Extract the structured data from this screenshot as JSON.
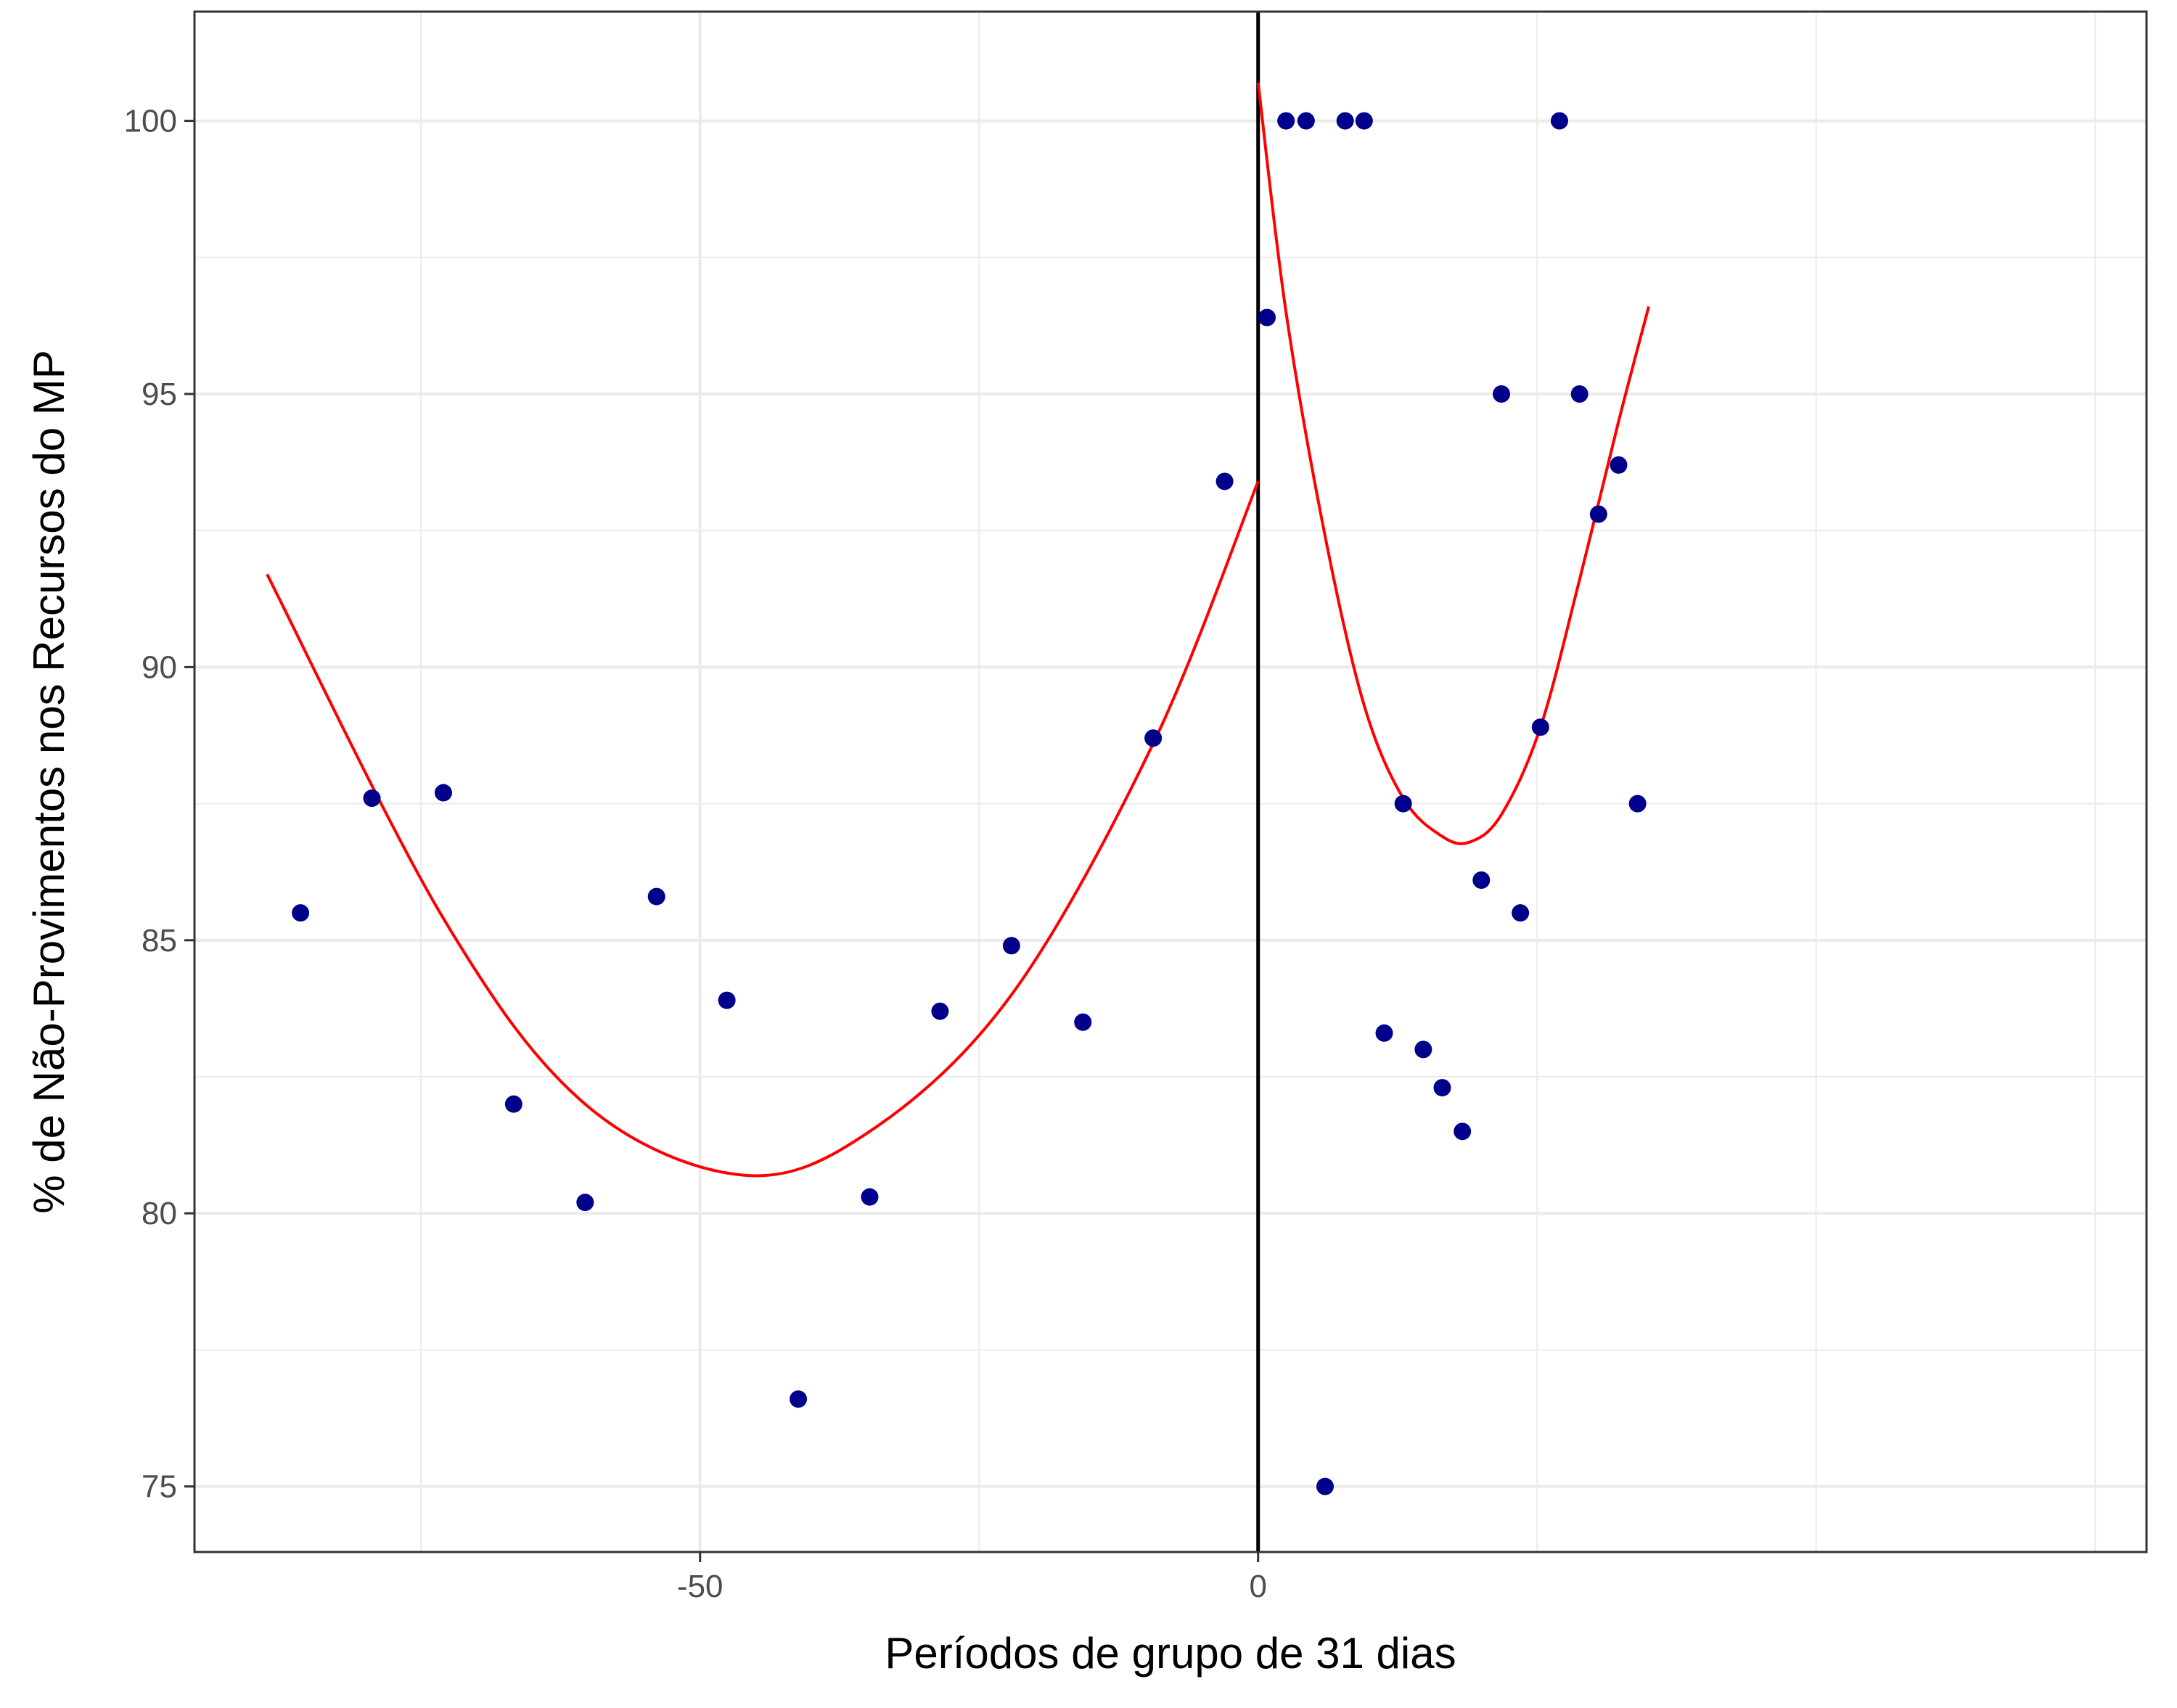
{
  "chart_data": {
    "type": "scatter",
    "xlabel": "Períodos de grupo de 31 dias",
    "ylabel": "% de Não-Provimentos nos Recursos do MP",
    "xlim": [
      -95.3,
      79.6
    ],
    "ylim": [
      73.8,
      102.0
    ],
    "x_ticks": [
      -50,
      0
    ],
    "x_tick_labels": [
      "-50",
      "0"
    ],
    "x_minor_ticks": [
      -75,
      -25,
      25,
      50,
      75
    ],
    "y_ticks": [
      75,
      80,
      85,
      90,
      95,
      100
    ],
    "y_tick_labels": [
      "75",
      "80",
      "85",
      "90",
      "95",
      "100"
    ],
    "y_minor_ticks": [
      77.5,
      82.5,
      87.5,
      92.5,
      97.5
    ],
    "grid": true,
    "cutoff_x": 0,
    "colors": {
      "points": "#00008B",
      "fit": "#FF0000",
      "cutoff": "#000000",
      "grid": "#EBEBEB"
    },
    "points": [
      {
        "x": -85.8,
        "y": 85.5
      },
      {
        "x": -79.4,
        "y": 87.6
      },
      {
        "x": -73.0,
        "y": 87.7
      },
      {
        "x": -66.7,
        "y": 82.0
      },
      {
        "x": -60.3,
        "y": 80.2
      },
      {
        "x": -53.9,
        "y": 85.8
      },
      {
        "x": -47.6,
        "y": 83.9
      },
      {
        "x": -41.2,
        "y": 76.6
      },
      {
        "x": -34.8,
        "y": 80.3
      },
      {
        "x": -28.5,
        "y": 83.7
      },
      {
        "x": -22.1,
        "y": 84.9
      },
      {
        "x": -15.7,
        "y": 83.5
      },
      {
        "x": -9.4,
        "y": 88.7
      },
      {
        "x": -3.0,
        "y": 93.4
      },
      {
        "x": 0.8,
        "y": 96.4
      },
      {
        "x": 2.5,
        "y": 100
      },
      {
        "x": 4.3,
        "y": 100
      },
      {
        "x": 6.0,
        "y": 75.0
      },
      {
        "x": 7.8,
        "y": 100
      },
      {
        "x": 9.5,
        "y": 100
      },
      {
        "x": 11.3,
        "y": 83.3
      },
      {
        "x": 13.0,
        "y": 87.5
      },
      {
        "x": 14.8,
        "y": 83.0
      },
      {
        "x": 16.5,
        "y": 82.3
      },
      {
        "x": 18.3,
        "y": 81.5
      },
      {
        "x": 20.0,
        "y": 86.1
      },
      {
        "x": 21.8,
        "y": 95.0
      },
      {
        "x": 23.5,
        "y": 85.5
      },
      {
        "x": 25.3,
        "y": 88.9
      },
      {
        "x": 27.0,
        "y": 100
      },
      {
        "x": 28.8,
        "y": 95.0
      },
      {
        "x": 30.5,
        "y": 92.8
      },
      {
        "x": 32.3,
        "y": 93.7
      },
      {
        "x": 34.0,
        "y": 87.5
      }
    ],
    "fit_curves": [
      {
        "segment": "left",
        "x": [
          -88.8,
          -73.0,
          -60.3,
          -46.2,
          -34.8,
          -22.1,
          -9.4,
          0
        ],
        "y": [
          91.7,
          85.4,
          82.0,
          80.7,
          81.5,
          84.0,
          88.6,
          93.4
        ]
      },
      {
        "segment": "right",
        "x": [
          0,
          2.5,
          6.0,
          9.5,
          13.0,
          16.5,
          19.0,
          21.8,
          25.3,
          28.8,
          32.3,
          35.0
        ],
        "y": [
          100.7,
          96.5,
          92.4,
          89.3,
          87.6,
          86.9,
          86.8,
          87.3,
          88.9,
          91.6,
          94.5,
          96.6
        ]
      }
    ]
  }
}
